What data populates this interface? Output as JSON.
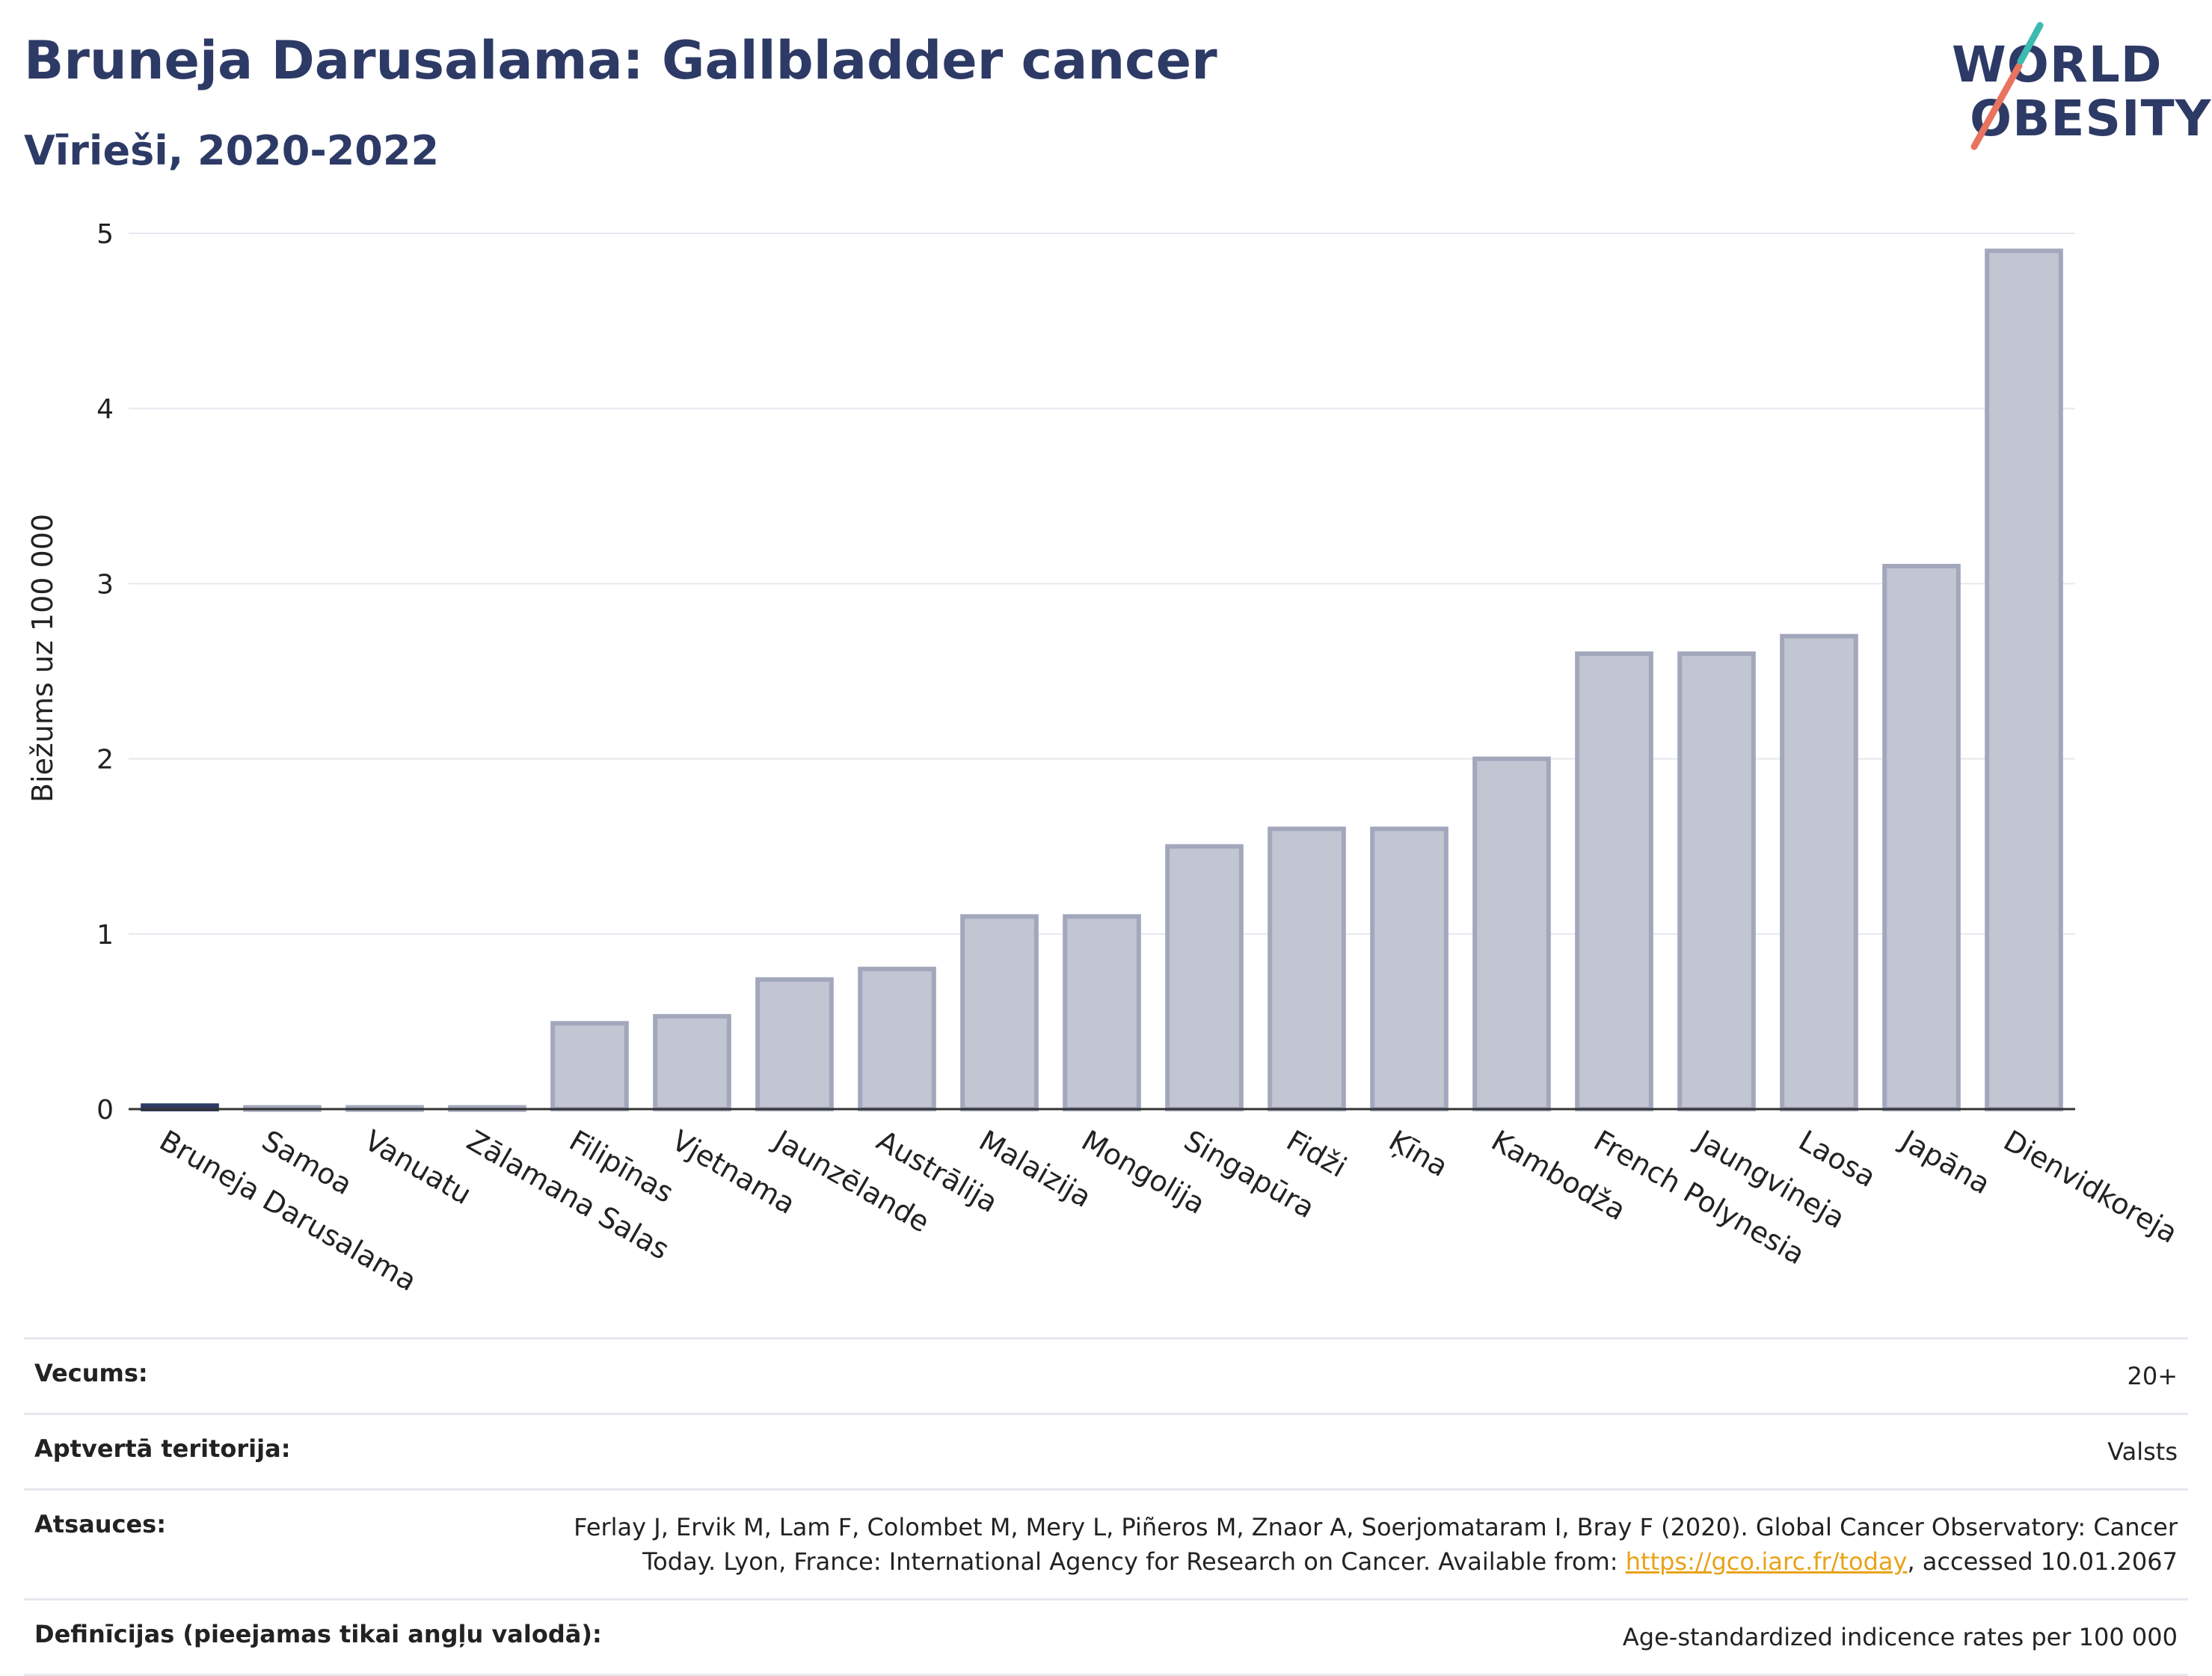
{
  "header": {
    "title": "Bruneja Darusalama: Gallbladder cancer",
    "subtitle": "Vīrieši, 2020-2022"
  },
  "logo": {
    "line1": "WORLD",
    "line2": "OBESITY"
  },
  "colors": {
    "bar": "#c2c5d2",
    "bar_stroke": "#a2a7bc",
    "highlight": "#2d3a66",
    "title": "#2d3a66",
    "grid": "#e6e8ef",
    "link": "#e8a317"
  },
  "chart_data": {
    "type": "bar",
    "ylabel": "Biežums uz 100 000",
    "ylim": [
      0,
      5
    ],
    "yticks": [
      0,
      1,
      2,
      3,
      4,
      5
    ],
    "grid": true,
    "highlight_category": "Bruneja Darusalama",
    "categories": [
      "Bruneja Darusalama",
      "Samoa",
      "Vanuatu",
      "Zālamana Salas",
      "Filipīnas",
      "Vjetnama",
      "Jaunzēlande",
      "Austrālija",
      "Malaizija",
      "Mongolija",
      "Singapūra",
      "Fidži",
      "Ķīna",
      "Kambodža",
      "French Polynesia",
      "Jaungvineja",
      "Laosa",
      "Japāna",
      "Dienvidkoreja"
    ],
    "values": [
      0.02,
      0.01,
      0.01,
      0.01,
      0.49,
      0.53,
      0.74,
      0.8,
      1.1,
      1.1,
      1.5,
      1.6,
      1.6,
      2.0,
      2.6,
      2.6,
      2.7,
      3.1,
      4.9
    ]
  },
  "meta": {
    "age_label": "Vecums:",
    "age_value": "20+",
    "coverage_label": "Aptvertā teritorija:",
    "coverage_value": "Valsts",
    "refs_label": "Atsauces:",
    "refs_line1": "Ferlay J, Ervik M, Lam F, Colombet M, Mery L, Piñeros M, Znaor A, Soerjomataram I, Bray F (2020). Global Cancer Observatory: Cancer",
    "refs_line2_pre": "Today. Lyon, France: International Agency for Research on Cancer. Available from: ",
    "refs_link": "https://gco.iarc.fr/today",
    "refs_line2_post": ", accessed 10.01.2067",
    "defs_label": "Definīcijas (pieejamas tikai angļu valodā):",
    "defs_value": "Age-standardized indicence rates per 100 000"
  }
}
